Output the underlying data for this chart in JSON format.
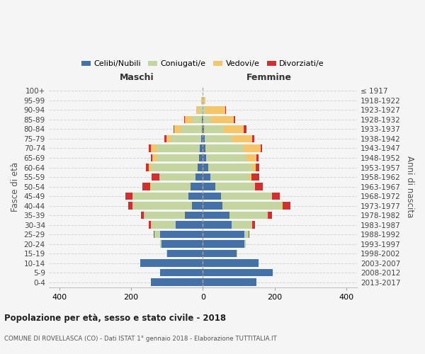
{
  "age_groups": [
    "0-4",
    "5-9",
    "10-14",
    "15-19",
    "20-24",
    "25-29",
    "30-34",
    "35-39",
    "40-44",
    "45-49",
    "50-54",
    "55-59",
    "60-64",
    "65-69",
    "70-74",
    "75-79",
    "80-84",
    "85-89",
    "90-94",
    "95-99",
    "100+"
  ],
  "birth_years": [
    "2013-2017",
    "2008-2012",
    "2003-2007",
    "1998-2002",
    "1993-1997",
    "1988-1992",
    "1983-1987",
    "1978-1982",
    "1973-1977",
    "1968-1972",
    "1963-1967",
    "1958-1962",
    "1953-1957",
    "1948-1952",
    "1943-1947",
    "1938-1942",
    "1933-1937",
    "1928-1932",
    "1923-1927",
    "1918-1922",
    "≤ 1917"
  ],
  "males": {
    "celibi": [
      145,
      120,
      175,
      100,
      115,
      120,
      75,
      50,
      30,
      40,
      35,
      20,
      15,
      10,
      8,
      5,
      3,
      2,
      0,
      0,
      0
    ],
    "coniugati": [
      0,
      0,
      0,
      2,
      5,
      15,
      70,
      115,
      165,
      155,
      110,
      100,
      130,
      120,
      122,
      82,
      58,
      28,
      8,
      2,
      0
    ],
    "vedovi": [
      0,
      0,
      0,
      0,
      0,
      0,
      0,
      0,
      2,
      2,
      2,
      2,
      5,
      10,
      15,
      15,
      18,
      20,
      10,
      2,
      0
    ],
    "divorziati": [
      0,
      0,
      0,
      0,
      0,
      2,
      5,
      8,
      12,
      18,
      22,
      20,
      8,
      5,
      5,
      5,
      2,
      2,
      0,
      0,
      0
    ]
  },
  "females": {
    "nubili": [
      150,
      195,
      155,
      95,
      115,
      115,
      80,
      75,
      55,
      50,
      35,
      22,
      15,
      10,
      8,
      5,
      4,
      2,
      0,
      0,
      0
    ],
    "coniugate": [
      0,
      0,
      0,
      2,
      5,
      12,
      58,
      105,
      165,
      142,
      108,
      108,
      120,
      110,
      105,
      78,
      52,
      22,
      8,
      2,
      0
    ],
    "vedove": [
      0,
      0,
      0,
      0,
      0,
      0,
      0,
      2,
      2,
      2,
      2,
      5,
      12,
      30,
      48,
      55,
      58,
      62,
      55,
      5,
      0
    ],
    "divorziate": [
      0,
      0,
      0,
      0,
      0,
      2,
      8,
      12,
      22,
      20,
      22,
      22,
      10,
      5,
      5,
      5,
      8,
      5,
      2,
      0,
      0
    ]
  },
  "colors": {
    "celibi": "#4472a8",
    "coniugati": "#c5d5a0",
    "vedovi": "#f5c56a",
    "divorziati": "#d03030"
  },
  "xlim": 430,
  "title": "Popolazione per età, sesso e stato civile - 2018",
  "subtitle": "COMUNE DI ROVELLASCA (CO) - Dati ISTAT 1° gennaio 2018 - Elaborazione TUTTITALIA.IT",
  "ylabel_left": "Fasce di età",
  "ylabel_right": "Anni di nascita",
  "xlabel_left": "Maschi",
  "xlabel_right": "Femmine",
  "bg_color": "#f5f5f5",
  "grid_color": "#cccccc"
}
